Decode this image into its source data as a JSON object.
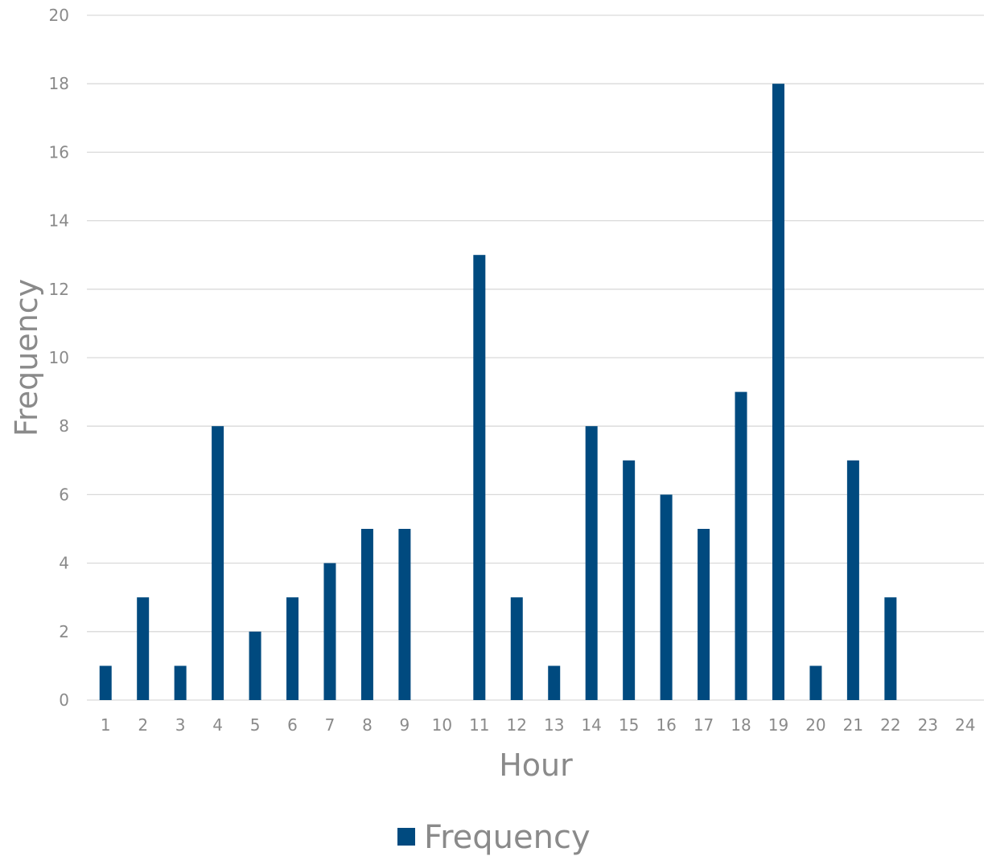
{
  "chart_data": {
    "type": "bar",
    "title": "",
    "xlabel": "Hour",
    "ylabel": "Frequency",
    "ylim": [
      0,
      20
    ],
    "yticks": [
      0,
      2,
      4,
      6,
      8,
      10,
      12,
      14,
      16,
      18,
      20
    ],
    "categories": [
      "1",
      "2",
      "3",
      "4",
      "5",
      "6",
      "7",
      "8",
      "9",
      "10",
      "11",
      "12",
      "13",
      "14",
      "15",
      "16",
      "17",
      "18",
      "19",
      "20",
      "21",
      "22",
      "23",
      "24"
    ],
    "series": [
      {
        "name": "Frequency",
        "color": "#004A7F",
        "values": [
          1,
          3,
          1,
          8,
          2,
          3,
          4,
          5,
          5,
          0,
          13,
          3,
          1,
          8,
          7,
          6,
          5,
          9,
          18,
          1,
          7,
          3,
          0,
          0
        ]
      }
    ],
    "grid": true,
    "legend": "bottom"
  }
}
